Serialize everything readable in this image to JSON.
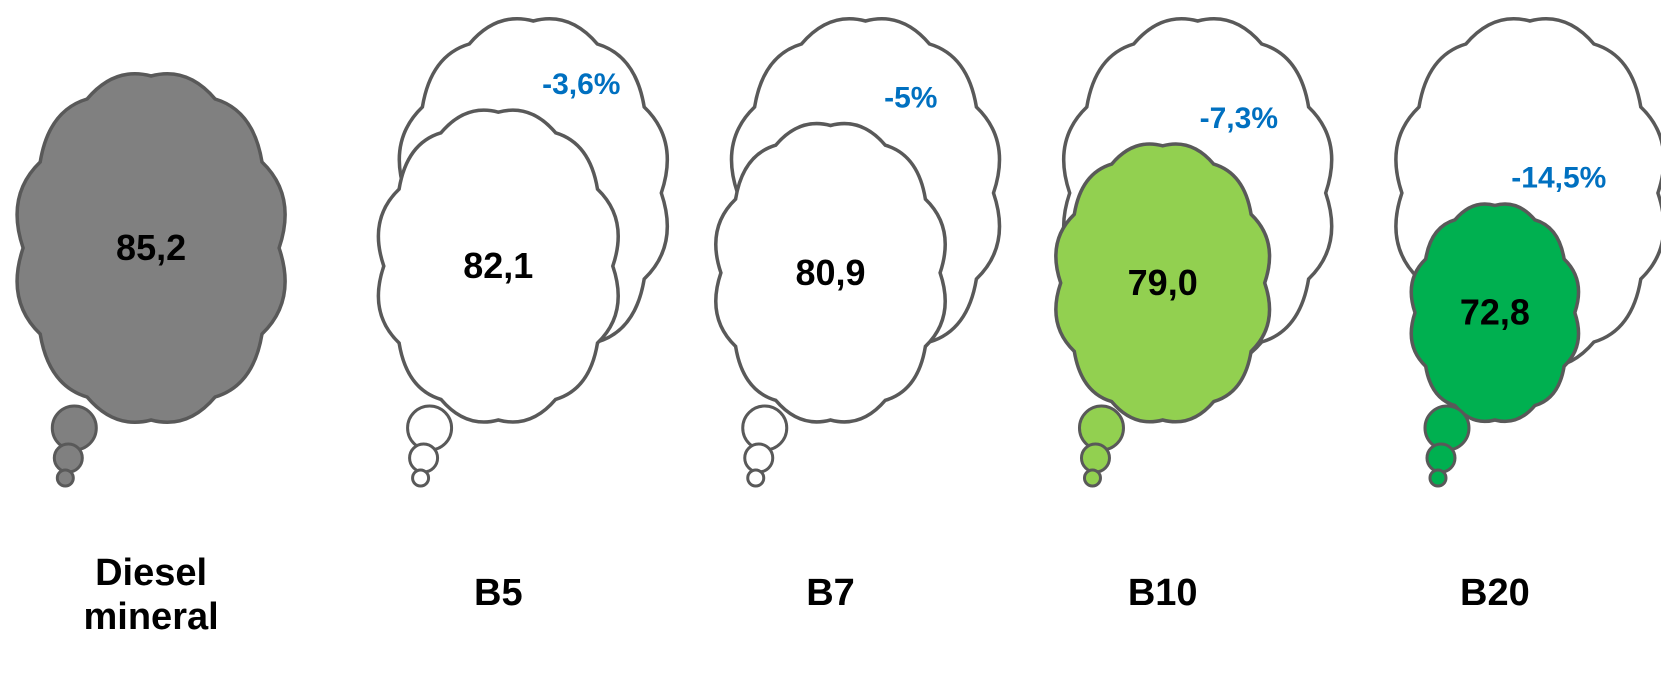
{
  "chart_data": {
    "type": "bar",
    "categories": [
      "Diesel mineral",
      "B5",
      "B7",
      "B10",
      "B20"
    ],
    "category_lines": [
      [
        "Diesel",
        "mineral"
      ],
      [
        "B5"
      ],
      [
        "B7"
      ],
      [
        "B10"
      ],
      [
        "B20"
      ]
    ],
    "values": [
      85.2,
      82.1,
      80.9,
      79.0,
      72.8
    ],
    "value_labels": [
      "85,2",
      "82,1",
      "80,9",
      "79,0",
      "72,8"
    ],
    "reduction_labels": [
      "",
      "-3,6%",
      "-5%",
      "-7,3%",
      "-14,5%"
    ],
    "reference_value": 85.2,
    "title": "",
    "xlabel": "",
    "ylabel": "",
    "colors": {
      "reference_fill": "#808080",
      "fills": [
        "#808080",
        "#ffffff",
        "#ffffff",
        "#92d050",
        "#00b050"
      ],
      "outline": "#595959",
      "reduction_text": "#0070c0"
    }
  }
}
